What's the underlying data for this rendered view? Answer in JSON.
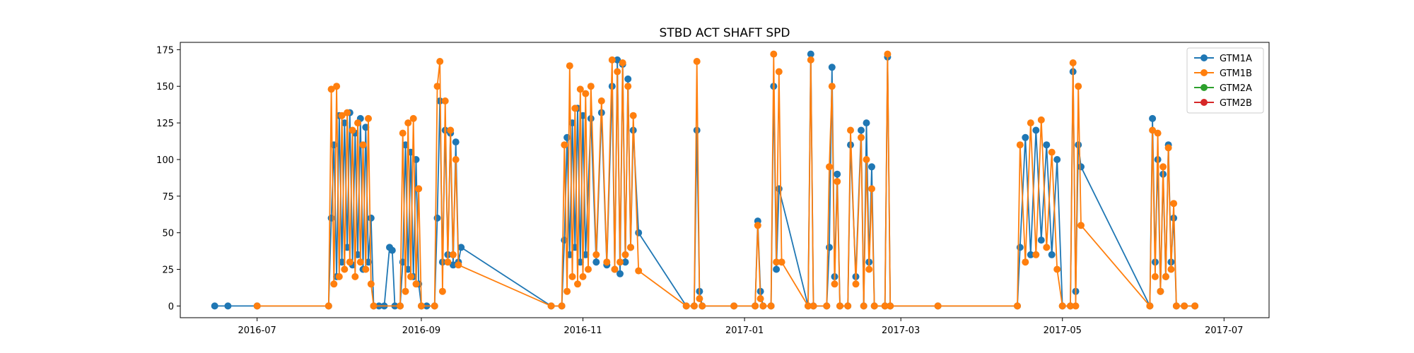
{
  "chart_data": {
    "type": "line",
    "title": "STBD ACT SHAFT SPD",
    "xlabel": "",
    "ylabel": "",
    "x_axis_kind": "date",
    "xlim": [
      "2016-06-02",
      "2017-07-18"
    ],
    "ylim": [
      -8,
      180
    ],
    "x_ticks": [
      "2016-07-01",
      "2016-09-01",
      "2016-11-01",
      "2017-01-01",
      "2017-03-01",
      "2017-05-01",
      "2017-07-01"
    ],
    "x_tick_labels": [
      "2016-07",
      "2016-09",
      "2016-11",
      "2017-01",
      "2017-03",
      "2017-05",
      "2017-07"
    ],
    "y_ticks": [
      0,
      25,
      50,
      75,
      100,
      125,
      150,
      175
    ],
    "y_tick_labels": [
      "0",
      "25",
      "50",
      "75",
      "100",
      "125",
      "150",
      "175"
    ],
    "grid": false,
    "legend_position": "top-right",
    "marker": "circle",
    "series": [
      {
        "name": "GTM1A",
        "color": "#1f77b4",
        "points": [
          [
            "2016-06-15",
            0
          ],
          [
            "2016-06-20",
            0
          ],
          [
            "2016-07-01",
            0
          ],
          [
            "2016-07-28",
            0
          ],
          [
            "2016-07-29",
            60
          ],
          [
            "2016-07-30",
            110
          ],
          [
            "2016-07-31",
            20
          ],
          [
            "2016-08-01",
            130
          ],
          [
            "2016-08-02",
            30
          ],
          [
            "2016-08-03",
            125
          ],
          [
            "2016-08-04",
            40
          ],
          [
            "2016-08-05",
            132
          ],
          [
            "2016-08-06",
            28
          ],
          [
            "2016-08-07",
            118
          ],
          [
            "2016-08-08",
            35
          ],
          [
            "2016-08-09",
            128
          ],
          [
            "2016-08-10",
            25
          ],
          [
            "2016-08-11",
            122
          ],
          [
            "2016-08-12",
            30
          ],
          [
            "2016-08-13",
            60
          ],
          [
            "2016-08-14",
            0
          ],
          [
            "2016-08-16",
            0
          ],
          [
            "2016-08-18",
            0
          ],
          [
            "2016-08-20",
            40
          ],
          [
            "2016-08-21",
            38
          ],
          [
            "2016-08-22",
            0
          ],
          [
            "2016-08-24",
            0
          ],
          [
            "2016-08-25",
            30
          ],
          [
            "2016-08-26",
            110
          ],
          [
            "2016-08-27",
            25
          ],
          [
            "2016-08-28",
            105
          ],
          [
            "2016-08-29",
            20
          ],
          [
            "2016-08-30",
            100
          ],
          [
            "2016-08-31",
            15
          ],
          [
            "2016-09-01",
            0
          ],
          [
            "2016-09-03",
            0
          ],
          [
            "2016-09-06",
            0
          ],
          [
            "2016-09-07",
            60
          ],
          [
            "2016-09-08",
            140
          ],
          [
            "2016-09-09",
            30
          ],
          [
            "2016-09-10",
            120
          ],
          [
            "2016-09-11",
            35
          ],
          [
            "2016-09-12",
            118
          ],
          [
            "2016-09-13",
            28
          ],
          [
            "2016-09-14",
            112
          ],
          [
            "2016-09-15",
            30
          ],
          [
            "2016-09-16",
            40
          ],
          [
            "2016-10-20",
            0
          ],
          [
            "2016-10-24",
            0
          ],
          [
            "2016-10-25",
            45
          ],
          [
            "2016-10-26",
            115
          ],
          [
            "2016-10-27",
            35
          ],
          [
            "2016-10-28",
            125
          ],
          [
            "2016-10-29",
            40
          ],
          [
            "2016-10-30",
            135
          ],
          [
            "2016-10-31",
            30
          ],
          [
            "2016-11-01",
            130
          ],
          [
            "2016-11-02",
            35
          ],
          [
            "2016-11-04",
            128
          ],
          [
            "2016-11-06",
            30
          ],
          [
            "2016-11-08",
            132
          ],
          [
            "2016-11-10",
            28
          ],
          [
            "2016-11-12",
            150
          ],
          [
            "2016-11-13",
            25
          ],
          [
            "2016-11-14",
            168
          ],
          [
            "2016-11-15",
            22
          ],
          [
            "2016-11-16",
            165
          ],
          [
            "2016-11-17",
            30
          ],
          [
            "2016-11-18",
            155
          ],
          [
            "2016-11-19",
            40
          ],
          [
            "2016-11-20",
            120
          ],
          [
            "2016-11-22",
            50
          ],
          [
            "2016-12-10",
            0
          ],
          [
            "2016-12-13",
            0
          ],
          [
            "2016-12-14",
            120
          ],
          [
            "2016-12-15",
            10
          ],
          [
            "2016-12-16",
            0
          ],
          [
            "2016-12-28",
            0
          ],
          [
            "2017-01-05",
            0
          ],
          [
            "2017-01-06",
            58
          ],
          [
            "2017-01-07",
            10
          ],
          [
            "2017-01-08",
            0
          ],
          [
            "2017-01-11",
            0
          ],
          [
            "2017-01-12",
            150
          ],
          [
            "2017-01-13",
            25
          ],
          [
            "2017-01-14",
            80
          ],
          [
            "2017-01-25",
            0
          ],
          [
            "2017-01-26",
            172
          ],
          [
            "2017-01-27",
            0
          ],
          [
            "2017-02-01",
            0
          ],
          [
            "2017-02-02",
            40
          ],
          [
            "2017-02-03",
            163
          ],
          [
            "2017-02-04",
            20
          ],
          [
            "2017-02-05",
            90
          ],
          [
            "2017-02-06",
            0
          ],
          [
            "2017-02-09",
            0
          ],
          [
            "2017-02-10",
            110
          ],
          [
            "2017-02-12",
            20
          ],
          [
            "2017-02-14",
            120
          ],
          [
            "2017-02-15",
            0
          ],
          [
            "2017-02-16",
            125
          ],
          [
            "2017-02-17",
            30
          ],
          [
            "2017-02-18",
            95
          ],
          [
            "2017-02-19",
            0
          ],
          [
            "2017-02-23",
            0
          ],
          [
            "2017-02-24",
            170
          ],
          [
            "2017-02-25",
            0
          ],
          [
            "2017-03-15",
            0
          ],
          [
            "2017-04-14",
            0
          ],
          [
            "2017-04-15",
            40
          ],
          [
            "2017-04-17",
            115
          ],
          [
            "2017-04-19",
            35
          ],
          [
            "2017-04-21",
            120
          ],
          [
            "2017-04-23",
            45
          ],
          [
            "2017-04-25",
            110
          ],
          [
            "2017-04-27",
            35
          ],
          [
            "2017-04-29",
            100
          ],
          [
            "2017-05-01",
            0
          ],
          [
            "2017-05-04",
            0
          ],
          [
            "2017-05-05",
            160
          ],
          [
            "2017-05-06",
            10
          ],
          [
            "2017-05-07",
            110
          ],
          [
            "2017-05-08",
            95
          ],
          [
            "2017-06-03",
            0
          ],
          [
            "2017-06-04",
            128
          ],
          [
            "2017-06-05",
            30
          ],
          [
            "2017-06-06",
            100
          ],
          [
            "2017-06-07",
            10
          ],
          [
            "2017-06-08",
            90
          ],
          [
            "2017-06-09",
            20
          ],
          [
            "2017-06-10",
            110
          ],
          [
            "2017-06-11",
            30
          ],
          [
            "2017-06-12",
            60
          ],
          [
            "2017-06-13",
            0
          ],
          [
            "2017-06-16",
            0
          ],
          [
            "2017-06-20",
            0
          ]
        ]
      },
      {
        "name": "GTM1B",
        "color": "#ff7f0e",
        "points": [
          [
            "2016-07-01",
            0
          ],
          [
            "2016-07-28",
            0
          ],
          [
            "2016-07-29",
            148
          ],
          [
            "2016-07-30",
            15
          ],
          [
            "2016-07-31",
            150
          ],
          [
            "2016-08-01",
            20
          ],
          [
            "2016-08-02",
            130
          ],
          [
            "2016-08-03",
            25
          ],
          [
            "2016-08-04",
            132
          ],
          [
            "2016-08-05",
            30
          ],
          [
            "2016-08-06",
            120
          ],
          [
            "2016-08-07",
            20
          ],
          [
            "2016-08-08",
            125
          ],
          [
            "2016-08-09",
            30
          ],
          [
            "2016-08-10",
            110
          ],
          [
            "2016-08-11",
            25
          ],
          [
            "2016-08-12",
            128
          ],
          [
            "2016-08-13",
            15
          ],
          [
            "2016-08-14",
            0
          ],
          [
            "2016-08-24",
            0
          ],
          [
            "2016-08-25",
            118
          ],
          [
            "2016-08-26",
            10
          ],
          [
            "2016-08-27",
            125
          ],
          [
            "2016-08-28",
            20
          ],
          [
            "2016-08-29",
            128
          ],
          [
            "2016-08-30",
            15
          ],
          [
            "2016-08-31",
            80
          ],
          [
            "2016-09-01",
            0
          ],
          [
            "2016-09-06",
            0
          ],
          [
            "2016-09-07",
            150
          ],
          [
            "2016-09-08",
            167
          ],
          [
            "2016-09-09",
            10
          ],
          [
            "2016-09-10",
            140
          ],
          [
            "2016-09-11",
            30
          ],
          [
            "2016-09-12",
            120
          ],
          [
            "2016-09-13",
            35
          ],
          [
            "2016-09-14",
            100
          ],
          [
            "2016-09-15",
            28
          ],
          [
            "2016-10-20",
            0
          ],
          [
            "2016-10-24",
            0
          ],
          [
            "2016-10-25",
            110
          ],
          [
            "2016-10-26",
            10
          ],
          [
            "2016-10-27",
            164
          ],
          [
            "2016-10-28",
            20
          ],
          [
            "2016-10-29",
            135
          ],
          [
            "2016-10-30",
            15
          ],
          [
            "2016-10-31",
            148
          ],
          [
            "2016-11-01",
            20
          ],
          [
            "2016-11-02",
            145
          ],
          [
            "2016-11-03",
            25
          ],
          [
            "2016-11-04",
            150
          ],
          [
            "2016-11-06",
            35
          ],
          [
            "2016-11-08",
            140
          ],
          [
            "2016-11-10",
            30
          ],
          [
            "2016-11-12",
            168
          ],
          [
            "2016-11-13",
            25
          ],
          [
            "2016-11-14",
            160
          ],
          [
            "2016-11-15",
            30
          ],
          [
            "2016-11-16",
            166
          ],
          [
            "2016-11-17",
            35
          ],
          [
            "2016-11-18",
            150
          ],
          [
            "2016-11-19",
            40
          ],
          [
            "2016-11-20",
            130
          ],
          [
            "2016-11-22",
            24
          ],
          [
            "2016-12-10",
            0
          ],
          [
            "2016-12-13",
            0
          ],
          [
            "2016-12-14",
            167
          ],
          [
            "2016-12-15",
            5
          ],
          [
            "2016-12-16",
            0
          ],
          [
            "2016-12-28",
            0
          ],
          [
            "2017-01-05",
            0
          ],
          [
            "2017-01-06",
            55
          ],
          [
            "2017-01-07",
            5
          ],
          [
            "2017-01-08",
            0
          ],
          [
            "2017-01-11",
            0
          ],
          [
            "2017-01-12",
            172
          ],
          [
            "2017-01-13",
            30
          ],
          [
            "2017-01-14",
            160
          ],
          [
            "2017-01-15",
            30
          ],
          [
            "2017-01-25",
            0
          ],
          [
            "2017-01-26",
            168
          ],
          [
            "2017-01-27",
            0
          ],
          [
            "2017-02-01",
            0
          ],
          [
            "2017-02-02",
            95
          ],
          [
            "2017-02-03",
            150
          ],
          [
            "2017-02-04",
            15
          ],
          [
            "2017-02-05",
            85
          ],
          [
            "2017-02-06",
            0
          ],
          [
            "2017-02-09",
            0
          ],
          [
            "2017-02-10",
            120
          ],
          [
            "2017-02-12",
            15
          ],
          [
            "2017-02-14",
            115
          ],
          [
            "2017-02-15",
            0
          ],
          [
            "2017-02-16",
            100
          ],
          [
            "2017-02-17",
            25
          ],
          [
            "2017-02-18",
            80
          ],
          [
            "2017-02-19",
            0
          ],
          [
            "2017-02-23",
            0
          ],
          [
            "2017-02-24",
            172
          ],
          [
            "2017-02-25",
            0
          ],
          [
            "2017-03-15",
            0
          ],
          [
            "2017-04-14",
            0
          ],
          [
            "2017-04-15",
            110
          ],
          [
            "2017-04-17",
            30
          ],
          [
            "2017-04-19",
            125
          ],
          [
            "2017-04-21",
            35
          ],
          [
            "2017-04-23",
            127
          ],
          [
            "2017-04-25",
            40
          ],
          [
            "2017-04-27",
            105
          ],
          [
            "2017-04-29",
            25
          ],
          [
            "2017-05-01",
            0
          ],
          [
            "2017-05-04",
            0
          ],
          [
            "2017-05-05",
            166
          ],
          [
            "2017-05-06",
            0
          ],
          [
            "2017-05-07",
            150
          ],
          [
            "2017-05-08",
            55
          ],
          [
            "2017-06-03",
            0
          ],
          [
            "2017-06-04",
            120
          ],
          [
            "2017-06-05",
            20
          ],
          [
            "2017-06-06",
            118
          ],
          [
            "2017-06-07",
            10
          ],
          [
            "2017-06-08",
            95
          ],
          [
            "2017-06-09",
            20
          ],
          [
            "2017-06-10",
            108
          ],
          [
            "2017-06-11",
            25
          ],
          [
            "2017-06-12",
            70
          ],
          [
            "2017-06-13",
            0
          ],
          [
            "2017-06-16",
            0
          ],
          [
            "2017-06-20",
            0
          ]
        ]
      },
      {
        "name": "GTM2A",
        "color": "#2ca02c",
        "points": []
      },
      {
        "name": "GTM2B",
        "color": "#d62728",
        "points": []
      }
    ]
  }
}
